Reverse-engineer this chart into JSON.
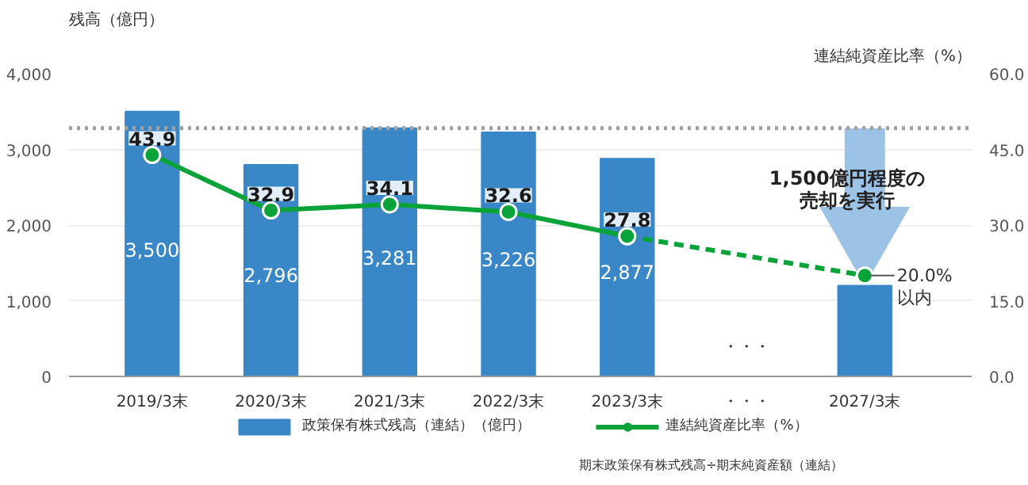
{
  "chart_data": {
    "type": "bar",
    "categories": [
      "2019/3末",
      "2020/3末",
      "2021/3末",
      "2022/3末",
      "2023/3末",
      "・・・",
      "2027/3末"
    ],
    "ylabel": "残高（億円）",
    "y2label": "連結純資産比率（%）",
    "ylim": [
      0,
      4000
    ],
    "yticks": [
      0,
      {
        "value": 1000,
        "label": "1,000"
      },
      {
        "value": 2000,
        "label": "2,000"
      },
      {
        "value": 3000,
        "label": "3,000"
      },
      {
        "value": 4000,
        "label": "4,000"
      }
    ],
    "y2lim": [
      0,
      60
    ],
    "y2ticks": [
      {
        "value": 0,
        "label": "0.0"
      },
      {
        "value": 15,
        "label": "15.0"
      },
      {
        "value": 30,
        "label": "30.0"
      },
      {
        "value": 45,
        "label": "45.0"
      },
      {
        "value": 60,
        "label": "60.0"
      }
    ],
    "series": [
      {
        "name": "政策保有株式残高（連結）（億円）",
        "color": "#3a87c8",
        "values": [
          3500,
          2796,
          3281,
          3226,
          2877,
          null,
          1200
        ],
        "value_labels": [
          "3,500",
          "2,796",
          "3,281",
          "3,226",
          "2,877",
          null,
          null
        ]
      },
      {
        "name": "連結純資産比率（%）",
        "type": "line",
        "axis": "y2",
        "color": "#0aa33a",
        "marker": "circle",
        "line_style": "solid",
        "values": [
          43.9,
          32.9,
          34.1,
          32.6,
          27.8,
          null,
          null
        ],
        "value_labels": [
          "43.9",
          "32.9",
          "34.1",
          "32.6",
          "27.8",
          null,
          null
        ]
      },
      {
        "type": "line",
        "axis": "y2",
        "color": "#0aa33a",
        "marker": "circle",
        "line_style": "dashed",
        "values": [
          null,
          null,
          null,
          null,
          27.8,
          null,
          20.0
        ]
      }
    ],
    "ref_lines": [
      {
        "axis": "y",
        "value": 3281,
        "color": "#a0a0a0",
        "line_style": "dotted"
      }
    ],
    "annotations": [
      "20.0%",
      "以内",
      "1,500億円程度の",
      "売却を実行",
      "期末政策保有株式残高÷期末純資産額（連結）",
      "・・・"
    ],
    "grid": "y",
    "legend": "bottom"
  }
}
